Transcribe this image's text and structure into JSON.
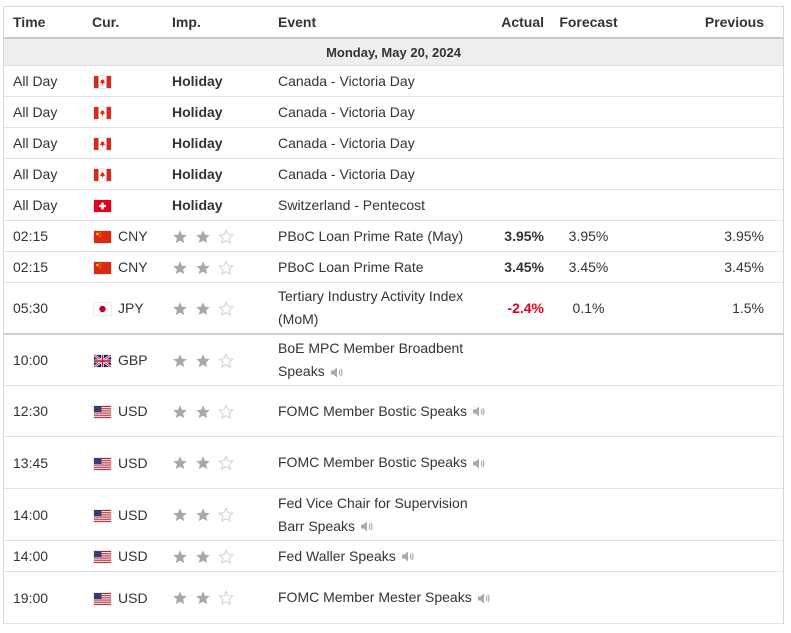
{
  "header": {
    "time": "Time",
    "currency": "Cur.",
    "importance": "Imp.",
    "event": "Event",
    "actual": "Actual",
    "forecast": "Forecast",
    "previous": "Previous"
  },
  "date_label": "Monday, May 20, 2024",
  "colors": {
    "negative": "#e0001a",
    "star_filled": "#a8a8a8",
    "star_empty": "#cfcfcf",
    "speaker": "#aaaaaa"
  },
  "events": [
    {
      "time": "All Day",
      "flag": "canada-flag-icon",
      "currency": "",
      "holiday": "Holiday",
      "event": "Canada - Victoria Day",
      "actual": "",
      "forecast": "",
      "previous": ""
    },
    {
      "time": "All Day",
      "flag": "canada-flag-icon",
      "currency": "",
      "holiday": "Holiday",
      "event": "Canada - Victoria Day",
      "actual": "",
      "forecast": "",
      "previous": ""
    },
    {
      "time": "All Day",
      "flag": "canada-flag-icon",
      "currency": "",
      "holiday": "Holiday",
      "event": "Canada - Victoria Day",
      "actual": "",
      "forecast": "",
      "previous": ""
    },
    {
      "time": "All Day",
      "flag": "canada-flag-icon",
      "currency": "",
      "holiday": "Holiday",
      "event": "Canada - Victoria Day",
      "actual": "",
      "forecast": "",
      "previous": ""
    },
    {
      "time": "All Day",
      "flag": "switzerland-flag-icon",
      "currency": "",
      "holiday": "Holiday",
      "event": "Switzerland - Pentecost",
      "actual": "",
      "forecast": "",
      "previous": ""
    },
    {
      "time": "02:15",
      "flag": "china-flag-icon",
      "currency": "CNY",
      "stars": 2,
      "event": "PBoC Loan Prime Rate (May)",
      "actual": "3.95%",
      "forecast": "3.95%",
      "previous": "3.95%"
    },
    {
      "time": "02:15",
      "flag": "china-flag-icon",
      "currency": "CNY",
      "stars": 2,
      "event": "PBoC Loan Prime Rate",
      "actual": "3.45%",
      "forecast": "3.45%",
      "previous": "3.45%"
    },
    {
      "time": "05:30",
      "flag": "japan-flag-icon",
      "currency": "JPY",
      "stars": 2,
      "event": "Tertiary Industry Activity Index (MoM)",
      "actual": "-2.4%",
      "actual_negative": true,
      "forecast": "0.1%",
      "previous": "1.5%",
      "separator": true
    },
    {
      "time": "10:00",
      "flag": "uk-flag-icon",
      "currency": "GBP",
      "stars": 2,
      "event": "BoE MPC Member Broadbent Speaks",
      "speaker": true,
      "actual": "",
      "forecast": "",
      "previous": ""
    },
    {
      "time": "12:30",
      "flag": "us-flag-icon",
      "currency": "USD",
      "stars": 2,
      "event": "FOMC Member Bostic Speaks",
      "speaker": true,
      "actual": "",
      "forecast": "",
      "previous": ""
    },
    {
      "time": "13:45",
      "flag": "us-flag-icon",
      "currency": "USD",
      "stars": 2,
      "event": "FOMC Member Bostic Speaks",
      "speaker": true,
      "actual": "",
      "forecast": "",
      "previous": ""
    },
    {
      "time": "14:00",
      "flag": "us-flag-icon",
      "currency": "USD",
      "stars": 2,
      "event": "Fed Vice Chair for Supervision Barr Speaks",
      "speaker": true,
      "actual": "",
      "forecast": "",
      "previous": ""
    },
    {
      "time": "14:00",
      "flag": "us-flag-icon",
      "currency": "USD",
      "stars": 2,
      "event": "Fed Waller Speaks",
      "speaker": true,
      "actual": "",
      "forecast": "",
      "previous": ""
    },
    {
      "time": "19:00",
      "flag": "us-flag-icon",
      "currency": "USD",
      "stars": 2,
      "event": "FOMC Member Mester Speaks",
      "speaker": true,
      "actual": "",
      "forecast": "",
      "previous": ""
    }
  ]
}
